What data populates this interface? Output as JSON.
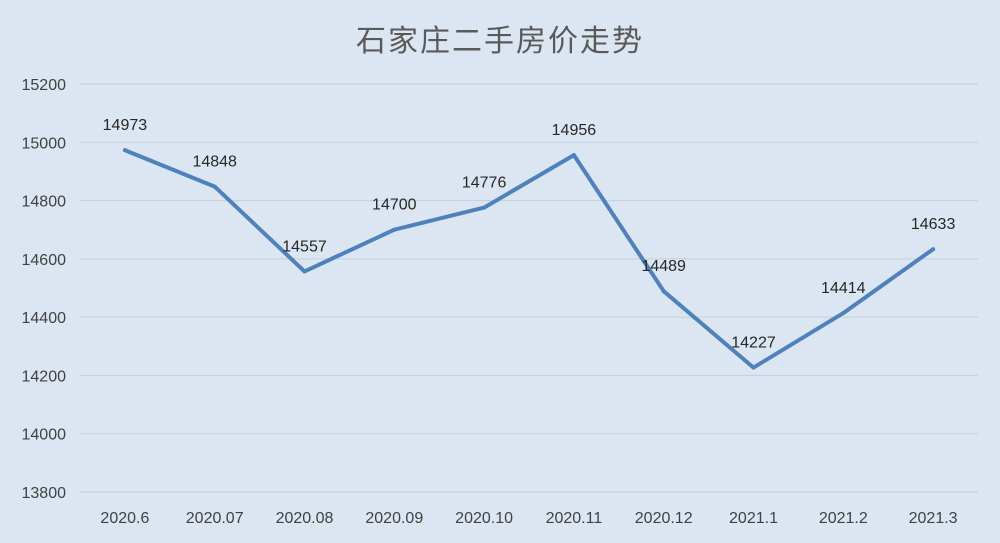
{
  "chart_data": {
    "type": "line",
    "title": "石家庄二手房价走势",
    "categories": [
      "2020.6",
      "2020.07",
      "2020.08",
      "2020.09",
      "2020.10",
      "2020.11",
      "2020.12",
      "2021.1",
      "2021.2",
      "2021.3"
    ],
    "series": [
      {
        "values": [
          14973,
          14848,
          14557,
          14700,
          14776,
          14956,
          14489,
          14227,
          14414,
          14633
        ],
        "color": "#4f81bd"
      }
    ],
    "data_labels": [
      "14973",
      "14848",
      "14557",
      "14700",
      "14776",
      "14956",
      "14489",
      "14227",
      "14414",
      "14633"
    ],
    "y_ticks": [
      "13800",
      "14000",
      "14200",
      "14400",
      "14600",
      "14800",
      "15000",
      "15200"
    ],
    "ylim": [
      13800,
      15200
    ],
    "xlabel": "",
    "ylabel": "",
    "grid": true,
    "legend": "none",
    "background_color": "#dce6f2",
    "grid_color": "#c4cfdc"
  }
}
